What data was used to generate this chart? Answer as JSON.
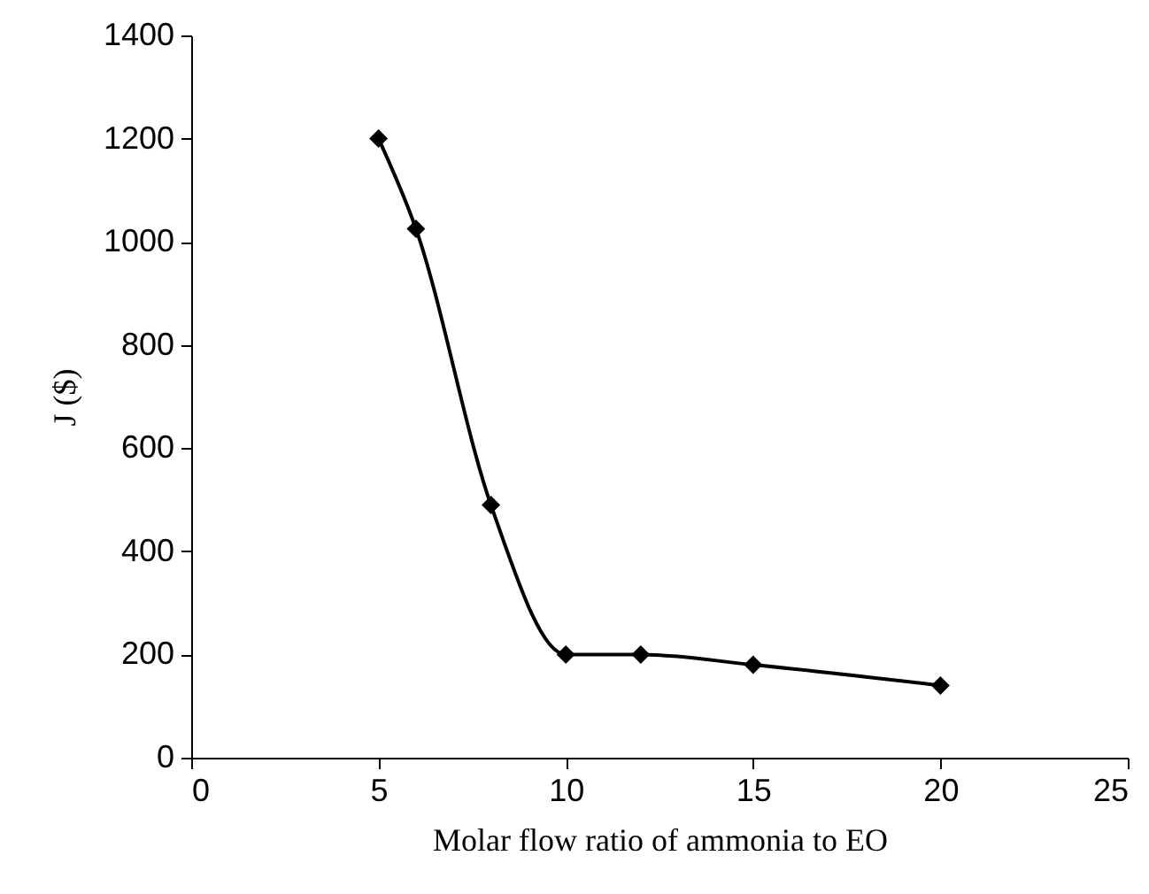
{
  "chart_data": {
    "type": "line",
    "xlabel": "Molar flow ratio of ammonia to EO",
    "ylabel": "J ($)",
    "x": [
      5,
      6,
      8,
      10,
      12,
      15,
      20
    ],
    "series": [
      {
        "color": "#000000",
        "values": [
          1200,
          1025,
          490,
          200,
          200,
          180,
          140
        ]
      }
    ],
    "xlim": [
      0,
      25
    ],
    "xticks": [
      0,
      5,
      10,
      15,
      20,
      25
    ],
    "ylim": [
      0,
      1400
    ],
    "yticks": [
      0,
      200,
      400,
      600,
      800,
      1000,
      1200,
      1400
    ],
    "marker": "diamond",
    "line_style": "solid",
    "grid": false
  }
}
